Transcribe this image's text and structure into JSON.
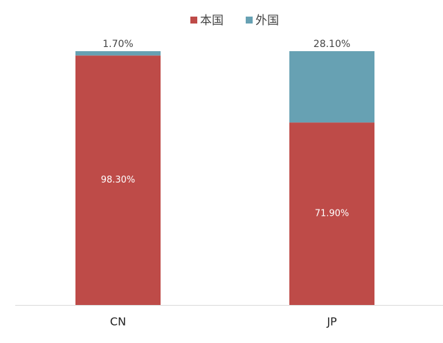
{
  "chart_data": {
    "type": "stacked-bar",
    "categories": [
      "CN",
      "JP"
    ],
    "series": [
      {
        "name": "本国",
        "color": "#be4b48",
        "values": [
          98.3,
          71.9
        ],
        "value_labels": [
          "98.30%",
          "71.90%"
        ]
      },
      {
        "name": "外国",
        "color": "#67a1b3",
        "values": [
          1.7,
          28.1
        ],
        "value_labels": [
          "1.70%",
          "28.10%"
        ]
      }
    ],
    "ylim": [
      0,
      100
    ],
    "legend": "top"
  }
}
